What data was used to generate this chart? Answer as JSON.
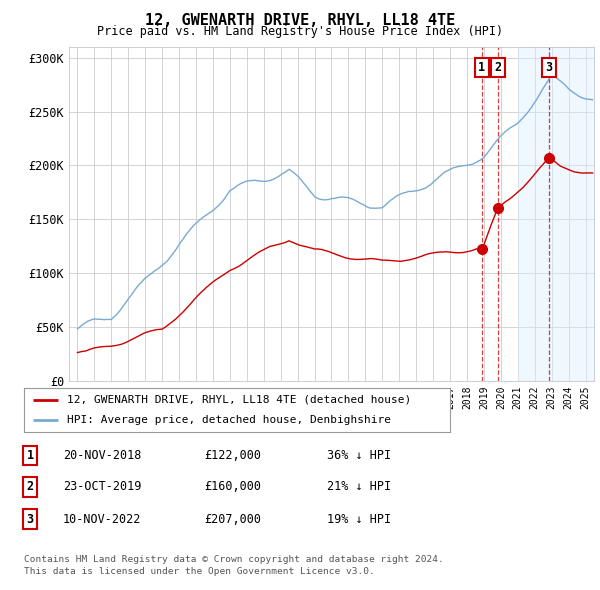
{
  "title": "12, GWENARTH DRIVE, RHYL, LL18 4TE",
  "subtitle": "Price paid vs. HM Land Registry's House Price Index (HPI)",
  "hpi_color": "#7aaad4",
  "price_color": "#cc0000",
  "background_color": "#ffffff",
  "plot_bg_color": "#ffffff",
  "grid_color": "#cccccc",
  "shade_color": "#ddeeff",
  "ylim": [
    0,
    310000
  ],
  "yticks": [
    0,
    50000,
    100000,
    150000,
    200000,
    250000,
    300000
  ],
  "ytick_labels": [
    "£0",
    "£50K",
    "£100K",
    "£150K",
    "£200K",
    "£250K",
    "£300K"
  ],
  "transactions": [
    {
      "label": "1",
      "date": "20-NOV-2018",
      "price": 122000,
      "pct": "36% ↓ HPI",
      "x_year": 2018.88
    },
    {
      "label": "2",
      "date": "23-OCT-2019",
      "price": 160000,
      "pct": "21% ↓ HPI",
      "x_year": 2019.81
    },
    {
      "label": "3",
      "date": "10-NOV-2022",
      "price": 207000,
      "pct": "19% ↓ HPI",
      "x_year": 2022.86
    }
  ],
  "legend_line1": "12, GWENARTH DRIVE, RHYL, LL18 4TE (detached house)",
  "legend_line2": "HPI: Average price, detached house, Denbighshire",
  "footer1": "Contains HM Land Registry data © Crown copyright and database right 2024.",
  "footer2": "This data is licensed under the Open Government Licence v3.0.",
  "xmin": 1994.5,
  "xmax": 2025.5,
  "shade_start": 2021.0
}
